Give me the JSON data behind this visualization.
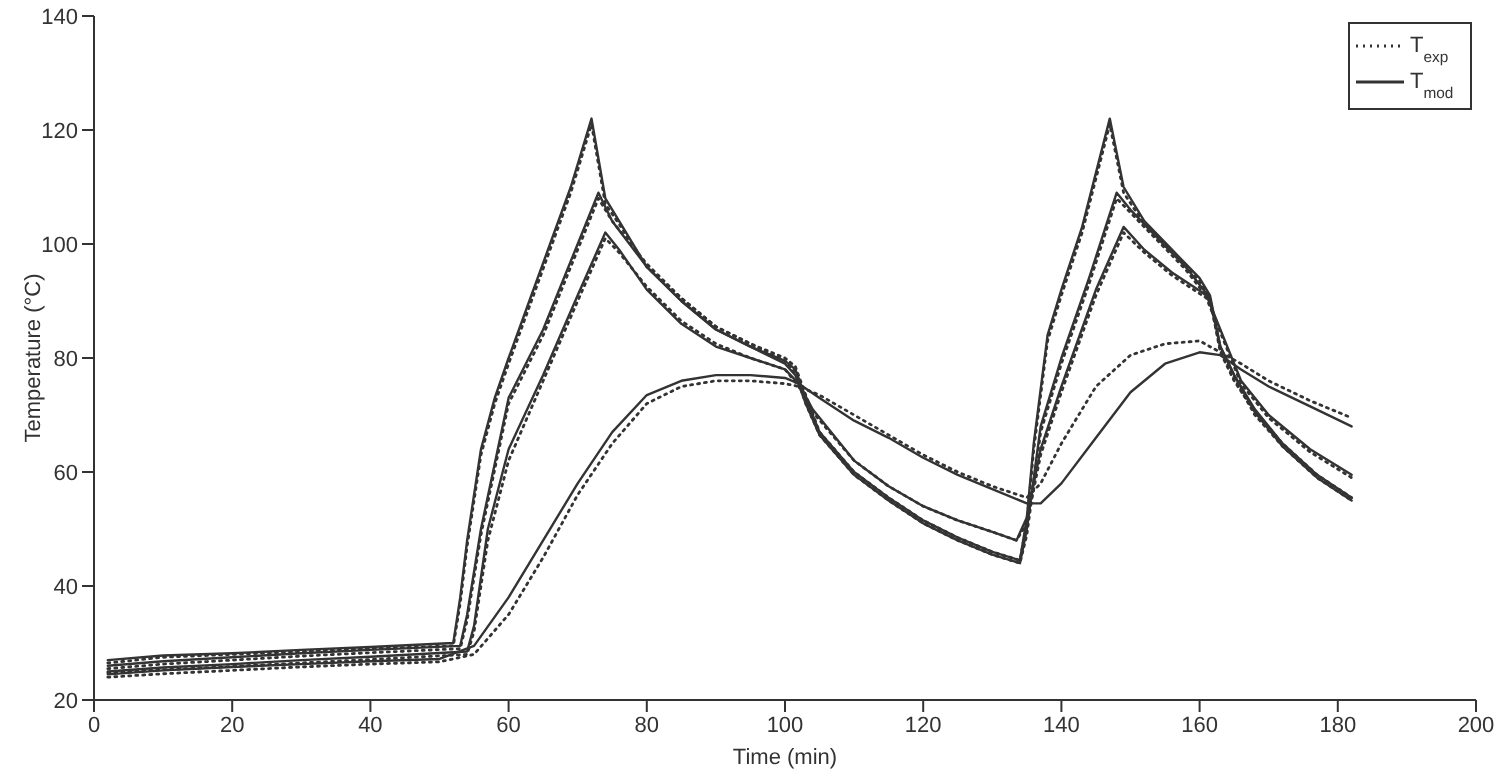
{
  "chart_data": {
    "type": "line",
    "xlabel": "Time (min)",
    "ylabel": "Temperature (°C)",
    "xlim": [
      0,
      200
    ],
    "ylim": [
      20,
      140
    ],
    "xticks": [
      0,
      20,
      40,
      60,
      80,
      100,
      120,
      140,
      160,
      180,
      200
    ],
    "yticks": [
      20,
      40,
      60,
      80,
      100,
      120,
      140
    ],
    "grid": false,
    "legend": "top right",
    "marker": "none",
    "series": [
      {
        "name": "T$_{exp}$",
        "line_style": "dotted",
        "color": "#333333",
        "x": [
          2,
          10,
          20,
          30,
          40,
          52,
          53,
          54,
          56,
          58,
          60,
          63,
          66,
          69,
          72,
          73,
          74,
          76,
          80,
          85,
          90,
          95,
          100,
          101.5,
          103,
          105,
          110,
          115,
          120,
          125,
          130,
          134,
          135,
          136,
          138,
          140,
          143,
          147,
          148,
          149,
          152,
          156,
          160,
          161.5,
          163,
          165,
          168,
          172,
          177,
          182
        ],
        "values": [
          26.5,
          27.5,
          28,
          28.5,
          29,
          29.5,
          37,
          47,
          63,
          72,
          79,
          89,
          99,
          109,
          121,
          114,
          107,
          103.5,
          96,
          90.5,
          85.5,
          82.5,
          80,
          78.5,
          73.5,
          67,
          60,
          55.5,
          51.5,
          48.5,
          46,
          44.5,
          51,
          64,
          83,
          91,
          102,
          121,
          115,
          109,
          103.5,
          98.5,
          93.5,
          90.5,
          81,
          76,
          70.5,
          65,
          59.5,
          55.5
        ]
      },
      {
        "line_style": "dotted",
        "color": "#333333",
        "x": [
          2,
          10,
          20,
          30,
          40,
          53,
          54,
          56,
          60,
          65,
          70,
          73,
          75,
          80,
          85,
          90,
          95,
          100,
          101.5,
          103,
          105,
          110,
          115,
          120,
          125,
          130,
          134,
          135,
          137,
          140,
          144,
          148,
          150,
          154,
          158,
          161.5,
          163,
          165,
          168,
          172,
          177,
          182
        ],
        "values": [
          25.5,
          26.3,
          27,
          27.7,
          28.3,
          29,
          34,
          49,
          72,
          84,
          99,
          108,
          104,
          96.5,
          90.5,
          85.5,
          82.5,
          79.5,
          77.5,
          72,
          66.5,
          59.5,
          55,
          51,
          48,
          45.5,
          44,
          49,
          67,
          79,
          93,
          108,
          105.5,
          100.5,
          95.5,
          90,
          81.5,
          76.5,
          70,
          64.5,
          59,
          55
        ]
      },
      {
        "line_style": "dotted",
        "color": "#333333",
        "x": [
          2,
          10,
          20,
          30,
          40,
          54,
          55,
          57,
          60,
          65,
          70,
          74,
          76,
          80,
          85,
          90,
          95,
          100,
          102,
          104,
          110,
          115,
          120,
          125,
          130,
          133.5,
          135,
          137,
          140,
          145,
          149,
          152,
          156,
          161,
          163,
          166,
          170,
          176,
          182
        ],
        "values": [
          24.8,
          25.3,
          25.9,
          26.5,
          27.1,
          28,
          32,
          48,
          62,
          76,
          90,
          101,
          98.5,
          92.5,
          86.5,
          82.5,
          80,
          78,
          75,
          70.5,
          62,
          57.5,
          54,
          51.5,
          49.5,
          48,
          51,
          63,
          74,
          91,
          102,
          98.5,
          94.5,
          90.5,
          84.5,
          75.5,
          69.5,
          63.5,
          59
        ]
      },
      {
        "line_style": "dotted",
        "color": "#333333",
        "x": [
          2,
          10,
          20,
          30,
          40,
          50,
          55,
          60,
          65,
          70,
          75,
          80,
          85,
          90,
          95,
          100,
          102,
          105,
          110,
          115,
          120,
          125,
          130,
          135,
          137,
          140,
          145,
          150,
          155,
          160,
          163,
          166,
          170,
          176,
          182
        ],
        "values": [
          24,
          24.6,
          25.2,
          25.8,
          26.3,
          26.7,
          28,
          35,
          45,
          56,
          65,
          72,
          75,
          76,
          76,
          75.5,
          75,
          73.5,
          70,
          66.5,
          63,
          60,
          57.5,
          55.5,
          58,
          65,
          75,
          80.5,
          82.5,
          83,
          81,
          79,
          76,
          72.5,
          69.5
        ]
      },
      {
        "name": "T$_{mod}$",
        "line_style": "solid",
        "color": "#333333",
        "x": [
          2,
          10,
          20,
          30,
          40,
          52,
          53,
          54,
          56,
          58,
          60,
          63,
          66,
          69,
          72,
          73,
          74,
          76,
          80,
          85,
          90,
          95,
          100,
          101.5,
          103,
          105,
          110,
          115,
          120,
          125,
          130,
          134,
          135,
          136,
          138,
          140,
          143,
          147,
          148,
          149,
          152,
          156,
          160,
          161.5,
          163,
          165,
          168,
          172,
          177,
          182
        ],
        "values": [
          27,
          27.8,
          28.2,
          28.8,
          29.3,
          30,
          38,
          48,
          64,
          73,
          80,
          90,
          100,
          110,
          122,
          115,
          108,
          104,
          96,
          90,
          85,
          82,
          79.5,
          78,
          73,
          67,
          60,
          55.5,
          51.5,
          48.5,
          46,
          44.5,
          52,
          65,
          84,
          92,
          103,
          122,
          116,
          110,
          104,
          99,
          94,
          91,
          82,
          77,
          71,
          65,
          59.5,
          55.5
        ]
      },
      {
        "line_style": "solid",
        "color": "#333333",
        "x": [
          2,
          10,
          20,
          30,
          40,
          53,
          54,
          56,
          60,
          65,
          70,
          73,
          75,
          80,
          85,
          90,
          95,
          100,
          101.5,
          103,
          105,
          110,
          115,
          120,
          125,
          130,
          134,
          135,
          137,
          140,
          144,
          148,
          150,
          154,
          158,
          161.5,
          163,
          165,
          168,
          172,
          177,
          182
        ],
        "values": [
          26,
          26.8,
          27.5,
          28.2,
          28.8,
          29.5,
          35,
          50,
          73,
          85,
          100,
          109,
          104,
          96,
          90,
          85,
          82,
          79,
          77,
          72,
          66.5,
          59.5,
          55,
          51,
          48,
          45.5,
          44,
          50,
          68,
          80,
          94,
          109,
          106,
          101,
          96,
          90.5,
          82,
          77,
          70.5,
          64.5,
          59,
          55
        ]
      },
      {
        "line_style": "solid",
        "color": "#333333",
        "x": [
          2,
          10,
          20,
          30,
          40,
          54,
          55,
          57,
          60,
          65,
          70,
          74,
          76,
          80,
          85,
          90,
          95,
          100,
          102,
          104,
          110,
          115,
          120,
          125,
          130,
          133.5,
          135,
          137,
          140,
          145,
          149,
          152,
          156,
          161,
          163,
          166,
          170,
          176,
          182
        ],
        "values": [
          25,
          25.7,
          26.3,
          27,
          27.6,
          28.5,
          33,
          50,
          64,
          77,
          91,
          102,
          99,
          92,
          86,
          82,
          80,
          78,
          75.5,
          71,
          62,
          57.5,
          54,
          51.5,
          49.5,
          48,
          52,
          64,
          75,
          92,
          103,
          99,
          95,
          91,
          85,
          76,
          70,
          64,
          59.5
        ]
      },
      {
        "line_style": "solid",
        "color": "#333333",
        "x": [
          2,
          10,
          20,
          30,
          40,
          50,
          55,
          60,
          65,
          70,
          75,
          80,
          85,
          90,
          95,
          100,
          102,
          105,
          110,
          115,
          120,
          125,
          130,
          135,
          137,
          140,
          145,
          150,
          155,
          160,
          163,
          166,
          170,
          176,
          182
        ],
        "values": [
          24.5,
          25.2,
          25.8,
          26.3,
          26.8,
          27.2,
          29.5,
          38,
          48,
          58,
          67,
          73.5,
          76,
          77,
          77,
          76.5,
          75.5,
          73,
          69,
          66,
          62.5,
          59.5,
          57,
          54.5,
          54.5,
          58,
          66,
          74,
          79,
          81,
          80.5,
          78,
          75,
          71.5,
          68
        ]
      }
    ]
  }
}
